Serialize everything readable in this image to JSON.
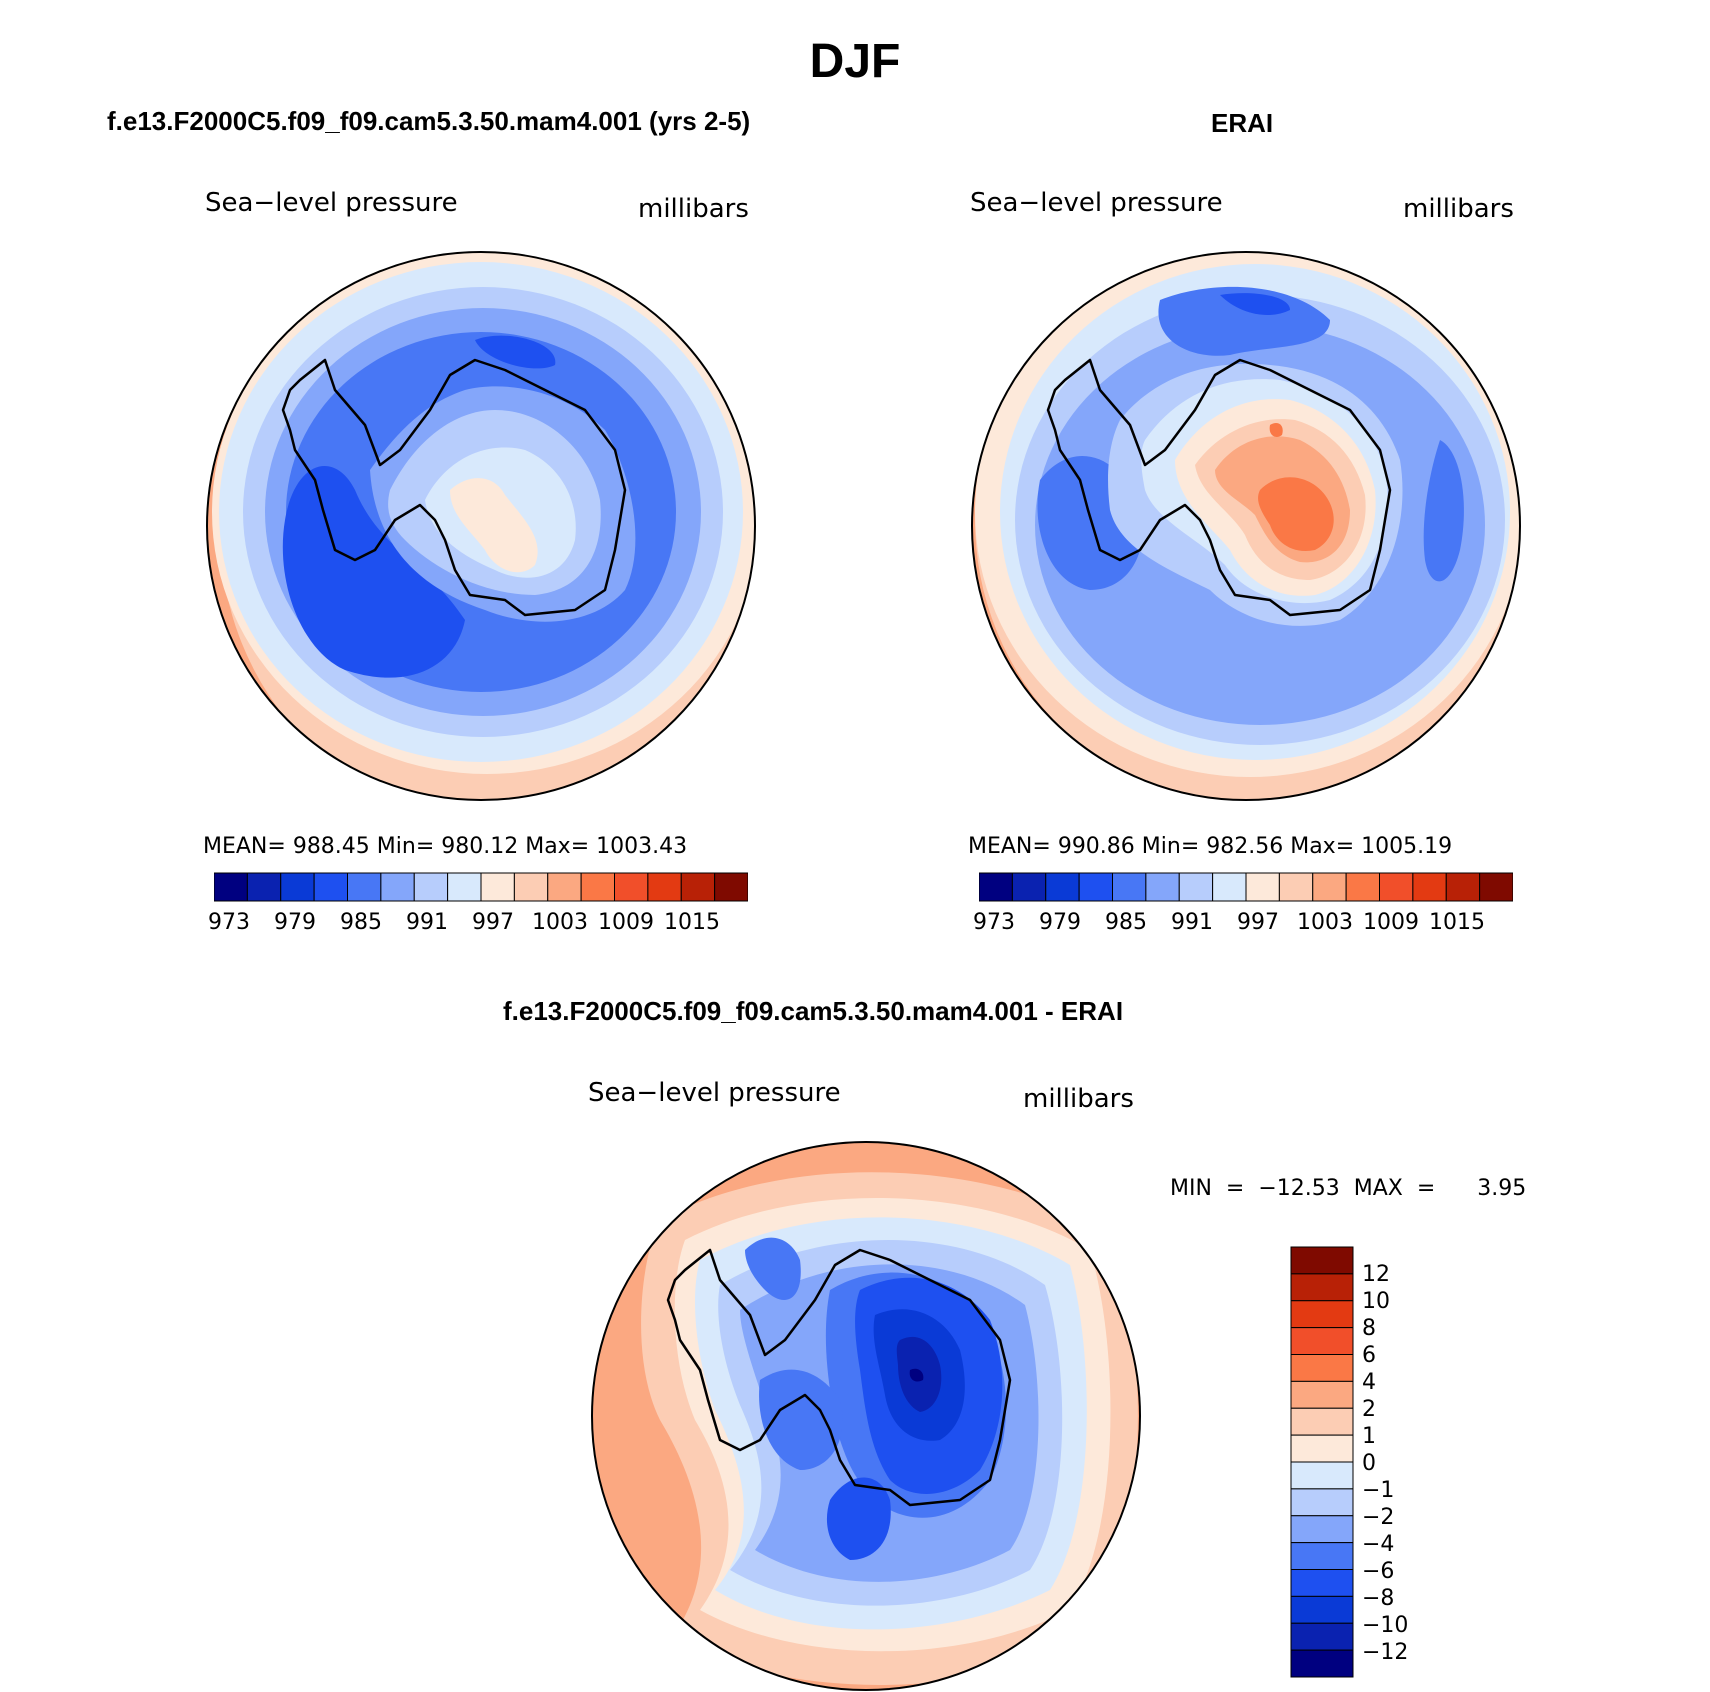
{
  "title": "DJF",
  "colors": {
    "abs_scale": [
      "#000080",
      "#0a22b0",
      "#0a3ad6",
      "#1e50f0",
      "#4877f5",
      "#84a6fa",
      "#b7cdfc",
      "#d8e9fc",
      "#fde9da",
      "#fccdb4",
      "#fba881",
      "#fa7846",
      "#f14f2a",
      "#e33a12",
      "#b82106",
      "#7f0a00"
    ],
    "diff_scale": [
      "#000080",
      "#0a22b0",
      "#0a3ad6",
      "#1e50f0",
      "#4877f5",
      "#84a6fa",
      "#b7cdfc",
      "#d8e9fc",
      "#fde9da",
      "#fccdb4",
      "#fba881",
      "#fa7846",
      "#f14f2a",
      "#e33a12",
      "#b82106",
      "#7f0a00"
    ]
  },
  "panels": {
    "model": {
      "case_title": "f.e13.F2000C5.f09_f09.cam5.3.50.mam4.001 (yrs 2-5)",
      "variable": "Sea−level pressure",
      "units": "millibars",
      "stats": "MEAN=  988.45    Min=  980.12    Max=  1003.43",
      "colorbar_labels": [
        "973",
        "979",
        "985",
        "991",
        "997",
        "1003",
        "1009",
        "1015"
      ]
    },
    "obs": {
      "case_title": "ERAI",
      "variable": "Sea−level pressure",
      "units": "millibars",
      "stats": "MEAN=  990.86    Min=  982.56    Max=  1005.19",
      "colorbar_labels": [
        "973",
        "979",
        "985",
        "991",
        "997",
        "1003",
        "1009",
        "1015"
      ]
    },
    "diff": {
      "case_title": "f.e13.F2000C5.f09_f09.cam5.3.50.mam4.001 - ERAI",
      "variable": "Sea−level pressure",
      "units": "millibars",
      "stats": "MIN  =  −12.53  MAX  =      3.95",
      "colorbar_labels": [
        "12",
        "10",
        "8",
        "6",
        "4",
        "2",
        "1",
        "0",
        "−1",
        "−2",
        "−4",
        "−6",
        "−8",
        "−10",
        "−12"
      ]
    }
  },
  "chart_data": [
    {
      "type": "heatmap",
      "title": "f.e13.F2000C5.f09_f09.cam5.3.50.mam4.001 (yrs 2-5)",
      "projection": "south polar stereographic",
      "variable": "Sea-level pressure",
      "units": "millibars",
      "mean": 988.45,
      "min": 980.12,
      "max": 1003.43,
      "contour_levels": [
        973,
        976,
        979,
        982,
        985,
        988,
        991,
        994,
        997,
        1000,
        1003,
        1006,
        1009,
        1012,
        1015
      ]
    },
    {
      "type": "heatmap",
      "title": "ERAI",
      "projection": "south polar stereographic",
      "variable": "Sea-level pressure",
      "units": "millibars",
      "mean": 990.86,
      "min": 982.56,
      "max": 1005.19,
      "contour_levels": [
        973,
        976,
        979,
        982,
        985,
        988,
        991,
        994,
        997,
        1000,
        1003,
        1006,
        1009,
        1012,
        1015
      ]
    },
    {
      "type": "heatmap",
      "title": "f.e13.F2000C5.f09_f09.cam5.3.50.mam4.001 - ERAI",
      "projection": "south polar stereographic",
      "variable": "Sea-level pressure",
      "units": "millibars",
      "min": -12.53,
      "max": 3.95,
      "contour_levels": [
        -12,
        -10,
        -8,
        -6,
        -4,
        -2,
        -1,
        0,
        1,
        2,
        4,
        6,
        8,
        10,
        12
      ]
    }
  ]
}
